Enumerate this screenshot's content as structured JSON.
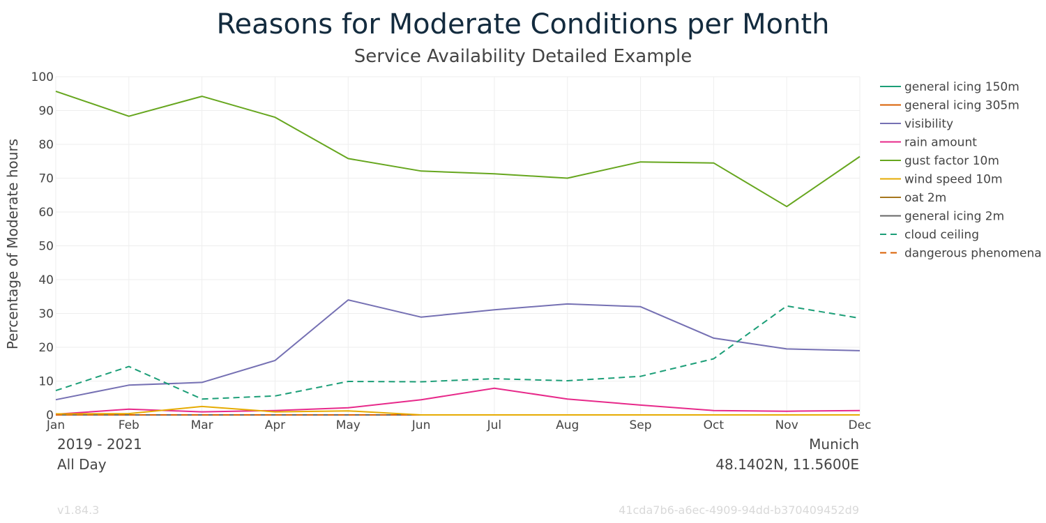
{
  "chart_data": {
    "type": "line",
    "title": "Reasons for Moderate Conditions per Month",
    "subtitle": "Service Availability Detailed Example",
    "xlabel": "",
    "ylabel": "Percentage of Moderate hours",
    "categories": [
      "Jan",
      "Feb",
      "Mar",
      "Apr",
      "May",
      "Jun",
      "Jul",
      "Aug",
      "Sep",
      "Oct",
      "Nov",
      "Dec"
    ],
    "ylim": [
      0,
      100
    ],
    "yticks": [
      0,
      10,
      20,
      30,
      40,
      50,
      60,
      70,
      80,
      90,
      100
    ],
    "grid": true,
    "legend_position": "right",
    "series": [
      {
        "name": "general icing 150m",
        "color": "#1b9e77",
        "dash": false,
        "values": [
          0,
          0,
          0,
          0,
          0,
          0,
          0,
          0,
          0,
          0,
          0,
          0
        ]
      },
      {
        "name": "general icing 305m",
        "color": "#d95f02",
        "dash": false,
        "values": [
          0,
          0,
          0,
          0,
          0,
          0,
          0,
          0,
          0,
          0,
          0,
          0
        ]
      },
      {
        "name": "visibility",
        "color": "#7570b3",
        "dash": false,
        "values": [
          4.5,
          8.8,
          9.6,
          16.1,
          34.0,
          28.9,
          31.1,
          32.8,
          32.0,
          22.7,
          19.5,
          19.0
        ]
      },
      {
        "name": "rain amount",
        "color": "#e7298a",
        "dash": false,
        "values": [
          0.2,
          1.7,
          0.9,
          1.3,
          2.1,
          4.5,
          7.9,
          4.7,
          2.9,
          1.3,
          1.1,
          1.3
        ]
      },
      {
        "name": "gust factor 10m",
        "color": "#66a61e",
        "dash": false,
        "values": [
          95.7,
          88.3,
          94.2,
          88.0,
          75.8,
          72.1,
          71.3,
          70.0,
          74.8,
          74.5,
          61.6,
          76.4
        ]
      },
      {
        "name": "wind speed 10m",
        "color": "#e6ab02",
        "dash": false,
        "values": [
          0.3,
          0.4,
          2.5,
          0.9,
          1.2,
          0,
          0,
          0,
          0,
          0,
          0,
          0
        ]
      },
      {
        "name": "oat 2m",
        "color": "#a6761d",
        "dash": false,
        "values": [
          0,
          0,
          0,
          0,
          0,
          0,
          0,
          0,
          0,
          0,
          0,
          0
        ]
      },
      {
        "name": "general icing 2m",
        "color": "#666666",
        "dash": false,
        "values": [
          0,
          0,
          0,
          0,
          0,
          0,
          0,
          0,
          0,
          0,
          0,
          0
        ]
      },
      {
        "name": "cloud ceiling",
        "color": "#1b9e77",
        "dash": true,
        "values": [
          7.2,
          14.3,
          4.7,
          5.6,
          9.9,
          9.8,
          10.7,
          10.1,
          11.4,
          16.6,
          32.2,
          28.6
        ]
      },
      {
        "name": "dangerous phenomena",
        "color": "#d95f02",
        "dash": true,
        "values": [
          0,
          0,
          0,
          0,
          0,
          0,
          0,
          0,
          0,
          0,
          0,
          0
        ]
      }
    ]
  },
  "footer": {
    "period": "2019 - 2021",
    "time_of_day": "All Day",
    "location": "Munich",
    "coordinates": "48.1402N, 11.5600E",
    "version": "v1.84.3",
    "id": "41cda7b6-a6ec-4909-94dd-b370409452d9"
  }
}
